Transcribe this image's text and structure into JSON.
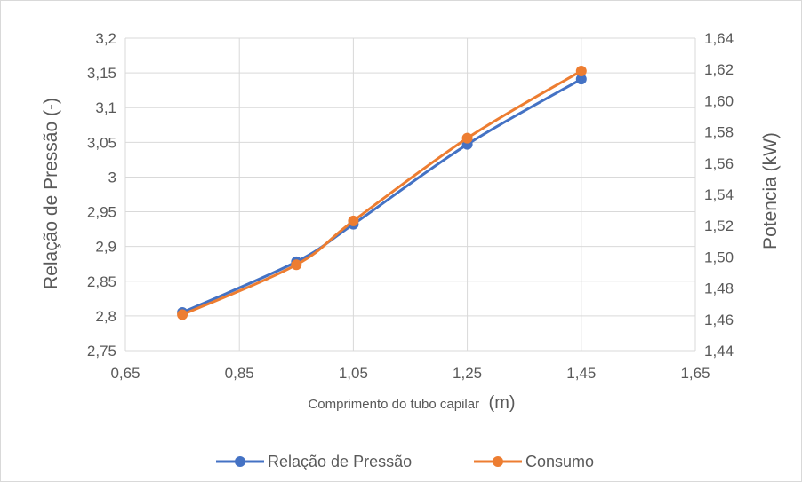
{
  "chart_data": {
    "type": "line",
    "title": "",
    "xlabel": "Comprimento do tubo capilar",
    "xlabel_unit": "(m)",
    "ylabel": "Relação de Pressão (-)",
    "y2label": "Potencia (kW)",
    "xlim": [
      0.65,
      1.65
    ],
    "ylim": [
      2.75,
      3.2
    ],
    "y2lim": [
      1.44,
      1.64
    ],
    "xticks": [
      "0,65",
      "0,85",
      "1,05",
      "1,25",
      "1,45",
      "1,65"
    ],
    "yticks": [
      "2,75",
      "2,8",
      "2,85",
      "2,9",
      "2,95",
      "3",
      "3,05",
      "3,1",
      "3,15",
      "3,2"
    ],
    "y2ticks": [
      "1,44",
      "1,46",
      "1,48",
      "1,50",
      "1,52",
      "1,54",
      "1,56",
      "1,58",
      "1,60",
      "1,62",
      "1,64"
    ],
    "grid": true,
    "legend_position": "bottom",
    "series": [
      {
        "name": "Relação de Pressão",
        "axis": "left",
        "color": "#4472c4",
        "x": [
          0.75,
          0.95,
          1.05,
          1.25,
          1.45
        ],
        "y": [
          2.805,
          2.878,
          2.932,
          3.047,
          3.141
        ]
      },
      {
        "name": "Consumo",
        "axis": "right",
        "color": "#ed7d31",
        "x": [
          0.75,
          0.95,
          1.05,
          1.25,
          1.45
        ],
        "y": [
          1.463,
          1.495,
          1.523,
          1.576,
          1.619
        ]
      }
    ]
  }
}
